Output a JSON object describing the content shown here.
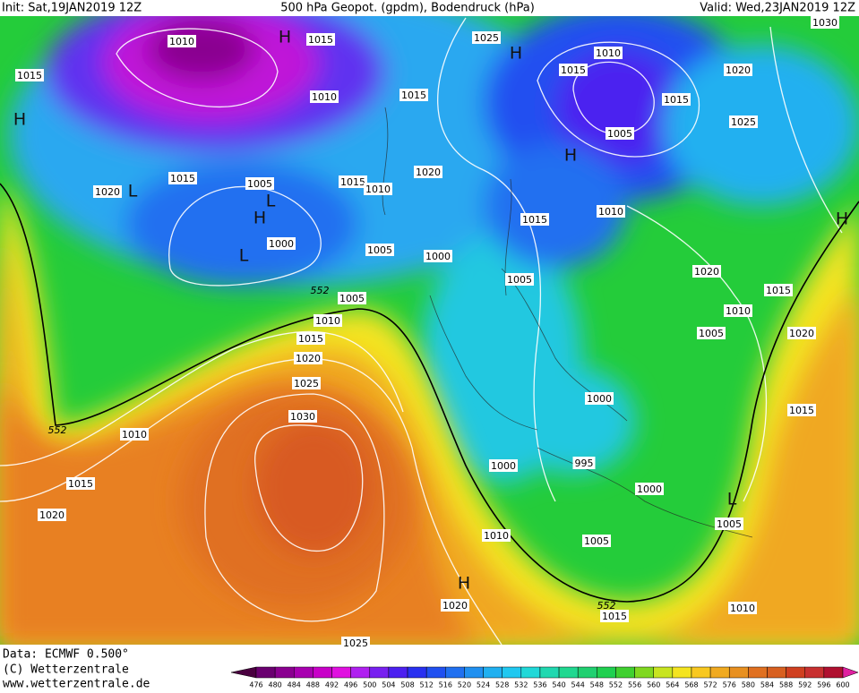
{
  "header": {
    "init": "Init: Sat,19JAN2019 12Z",
    "title": "500 hPa Geopot. (gpdm), Bodendruck (hPa)",
    "valid": "Valid: Wed,23JAN2019 12Z"
  },
  "isobar_labels": [
    "1010",
    "1015",
    "1025",
    "1010",
    "1030",
    "1015",
    "1015",
    "1020",
    "1010",
    "1015",
    "1015",
    "1025",
    "1005",
    "1015",
    "1020",
    "1005",
    "1015",
    "1010",
    "1020",
    "1015",
    "1010",
    "1000",
    "1005",
    "1000",
    "1020",
    "1005",
    "1015",
    "1005",
    "1010",
    "1010",
    "1005",
    "1020",
    "1015",
    "1020",
    "1025",
    "1000",
    "1030",
    "1015",
    "1010",
    "1000",
    "995",
    "1015",
    "1000",
    "1020",
    "1005",
    "1010",
    "1005",
    "1020",
    "1015",
    "1010",
    "1025"
  ],
  "pressure_centers": [
    "H",
    "H",
    "H",
    "L",
    "H",
    "L",
    "H",
    "L",
    "H",
    "L",
    "H"
  ],
  "contour_labels": [
    "552",
    "552",
    "552"
  ],
  "colorbar": {
    "ticks": [
      476,
      480,
      484,
      488,
      492,
      496,
      500,
      504,
      508,
      512,
      516,
      520,
      524,
      528,
      532,
      536,
      540,
      544,
      548,
      552,
      556,
      560,
      564,
      568,
      572,
      576,
      580,
      584,
      588,
      592,
      596,
      600
    ],
    "colors": [
      "#4a0040",
      "#6a0070",
      "#8a0090",
      "#a800b0",
      "#c800c8",
      "#e010e0",
      "#b020f0",
      "#7820f0",
      "#4c20f0",
      "#2830f0",
      "#2050f0",
      "#2070f0",
      "#2090f0",
      "#20b0f0",
      "#20c8f0",
      "#20d8d8",
      "#20d8b0",
      "#20d890",
      "#20d070",
      "#20d050",
      "#40d030",
      "#80d820",
      "#c8e420",
      "#f4e420",
      "#f8c820",
      "#f0aa20",
      "#e89020",
      "#e07020",
      "#d86020",
      "#d04020",
      "#c83030",
      "#b01030",
      "#e020a0"
    ]
  },
  "footer": {
    "data": "Data: ECMWF  0.500°",
    "copyright": "(C) Wetterzentrale",
    "url": "www.wetterzentrale.de"
  }
}
